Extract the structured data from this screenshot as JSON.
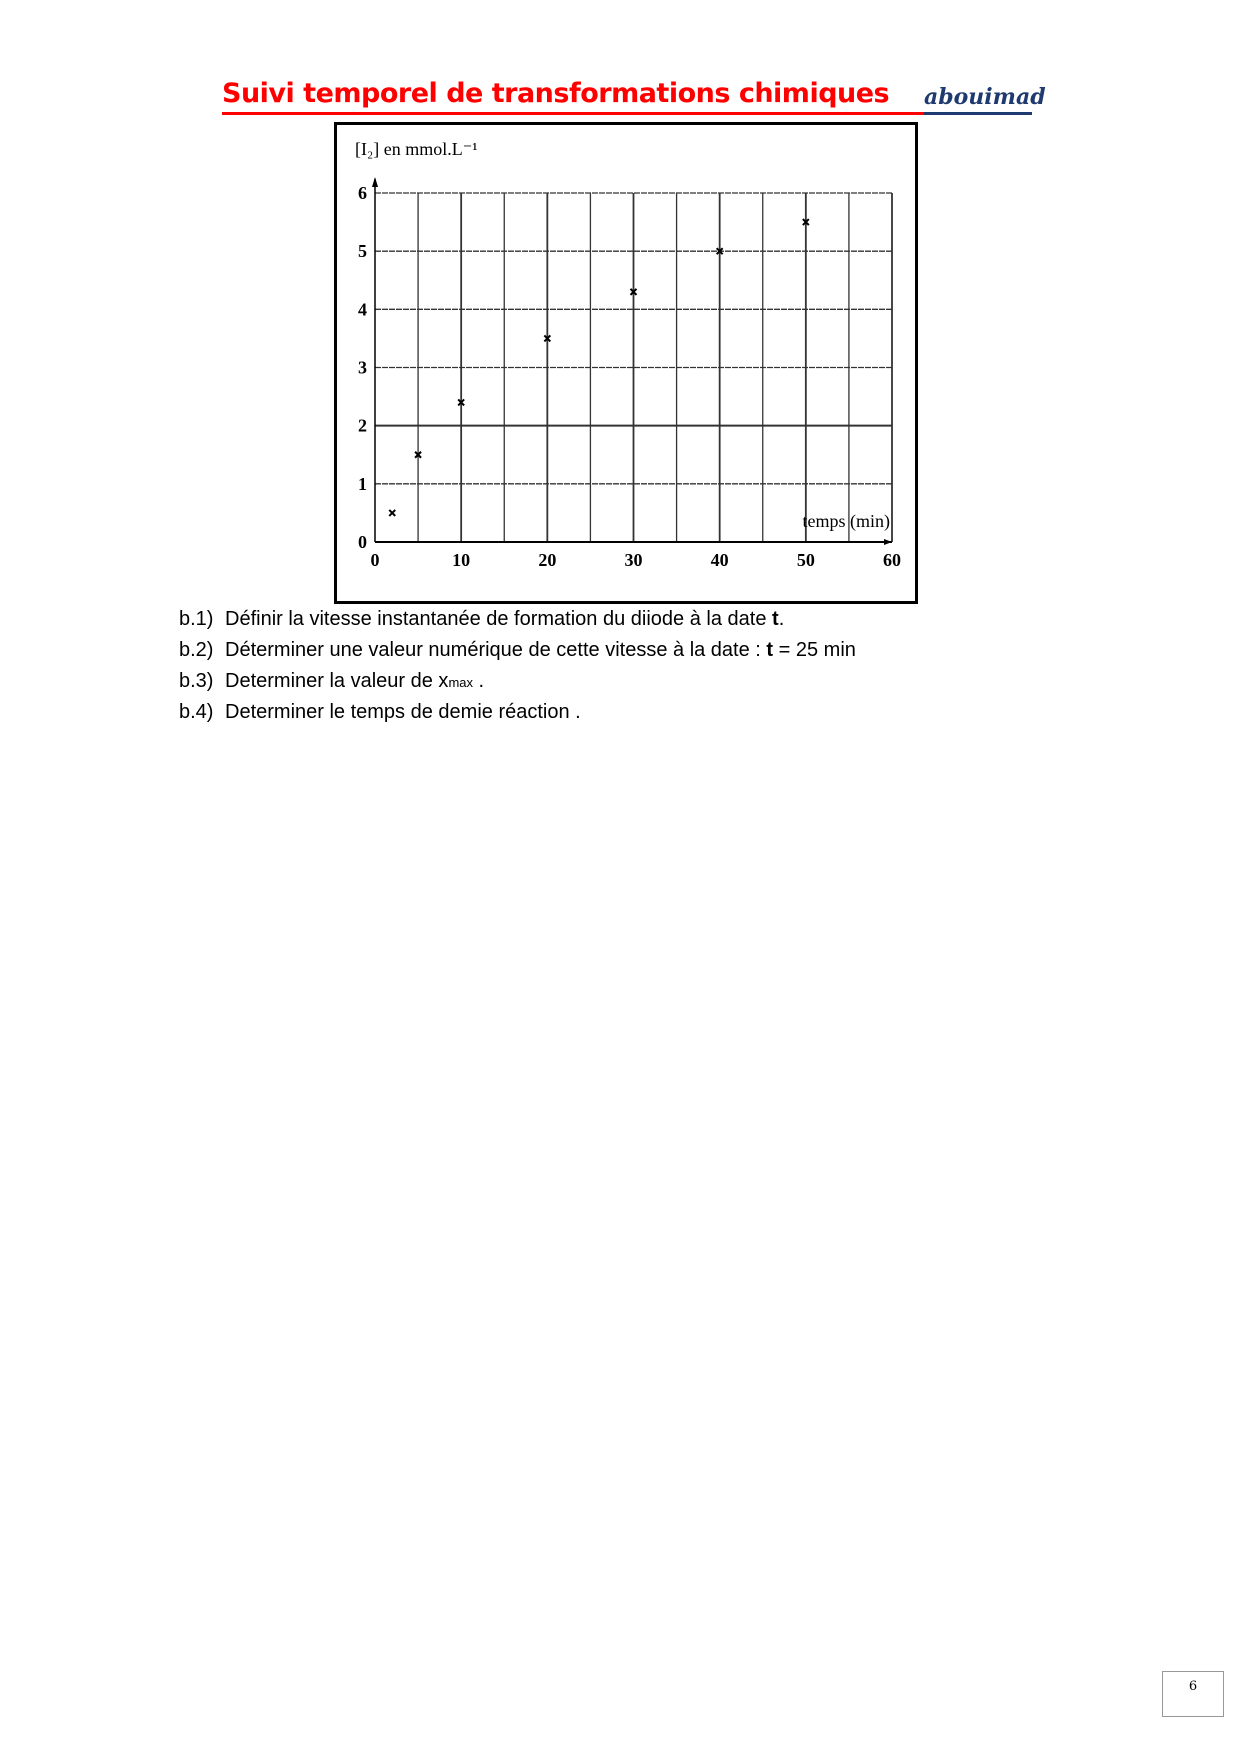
{
  "header": {
    "title": "Suivi temporel de transformations chimiques",
    "logo": "abouimad"
  },
  "chart_data": {
    "type": "scatter",
    "ylabel": "[I₂] en mmol.L⁻¹",
    "xlabel": "temps (min)",
    "xlim": [
      0,
      60
    ],
    "ylim": [
      0,
      6
    ],
    "xticks": [
      0,
      10,
      20,
      30,
      40,
      50,
      60
    ],
    "yticks": [
      0,
      1,
      2,
      3,
      4,
      5,
      6
    ],
    "grid": true,
    "x": [
      2,
      5,
      10,
      20,
      30,
      40,
      50
    ],
    "y": [
      0.5,
      1.5,
      2.4,
      3.5,
      4.3,
      5,
      5.5
    ]
  },
  "questions": [
    {
      "num": "b.1)",
      "text": "Définir la vitesse instantanée de formation du diiode à la date ",
      "bold": "t",
      "after": "."
    },
    {
      "num": "b.2)",
      "text": "Déterminer une valeur numérique de cette vitesse à la date : ",
      "bold": "t",
      "after": " = 25 min"
    },
    {
      "num": "b.3)",
      "text": "Determiner la valeur de x",
      "sub": "max",
      "after": " ."
    },
    {
      "num": "b.4)",
      "text": "Determiner le temps de demie réaction ."
    }
  ],
  "footer": {
    "page_number": "6"
  }
}
